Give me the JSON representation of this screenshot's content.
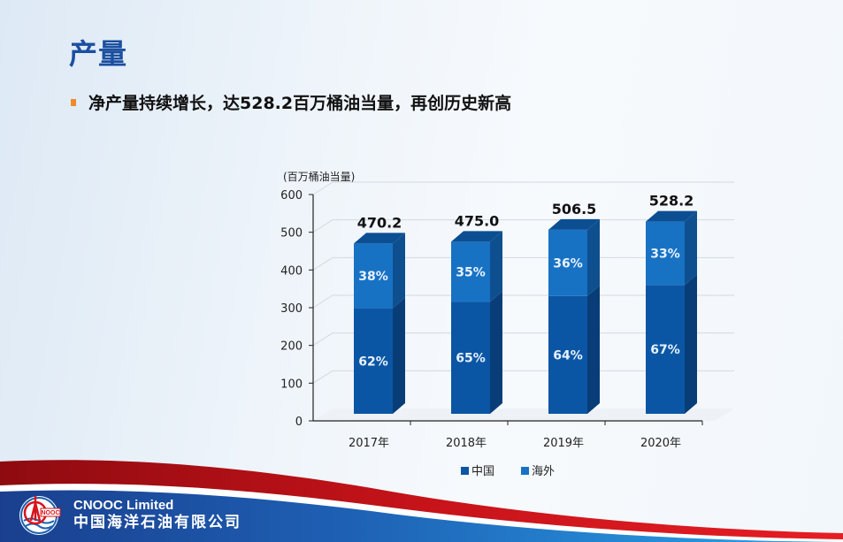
{
  "slide": {
    "title": "产量",
    "bullet": "净产量持续增长，达528.2百万桶油当量，再创历史新高"
  },
  "chart_data": {
    "type": "bar",
    "stacked": true,
    "style": "3d-column",
    "title": "",
    "ylabel": "(百万桶油当量)",
    "xlabel": "",
    "ylim": [
      0,
      600
    ],
    "yticks": [
      0,
      100,
      200,
      300,
      400,
      500,
      600
    ],
    "categories": [
      "2017年",
      "2018年",
      "2019年",
      "2020年"
    ],
    "totals": [
      470.2,
      475.0,
      506.5,
      528.2
    ],
    "total_labels": [
      "470.2",
      "475.0",
      "506.5",
      "528.2"
    ],
    "series": [
      {
        "name": "中国",
        "color": "#0b56a4",
        "share_labels": [
          "62%",
          "65%",
          "64%",
          "67%"
        ],
        "values": [
          291.5,
          308.8,
          324.2,
          353.9
        ]
      },
      {
        "name": "海外",
        "color": "#1872c4",
        "share_labels": [
          "38%",
          "35%",
          "36%",
          "33%"
        ],
        "values": [
          178.7,
          166.2,
          182.3,
          174.3
        ]
      }
    ],
    "legend_position": "bottom",
    "grid": true
  },
  "footer": {
    "brand_en": "CNOOC Limited",
    "brand_cn": "中国海洋石油有限公司",
    "logo_text": "NOOC"
  },
  "colors": {
    "title": "#1b4fa0",
    "bullet": "#f08a2c",
    "china": "#0b56a4",
    "overseas": "#1872c4",
    "footer_red": "#d7141a",
    "footer_blue": "#1c4f9c"
  }
}
